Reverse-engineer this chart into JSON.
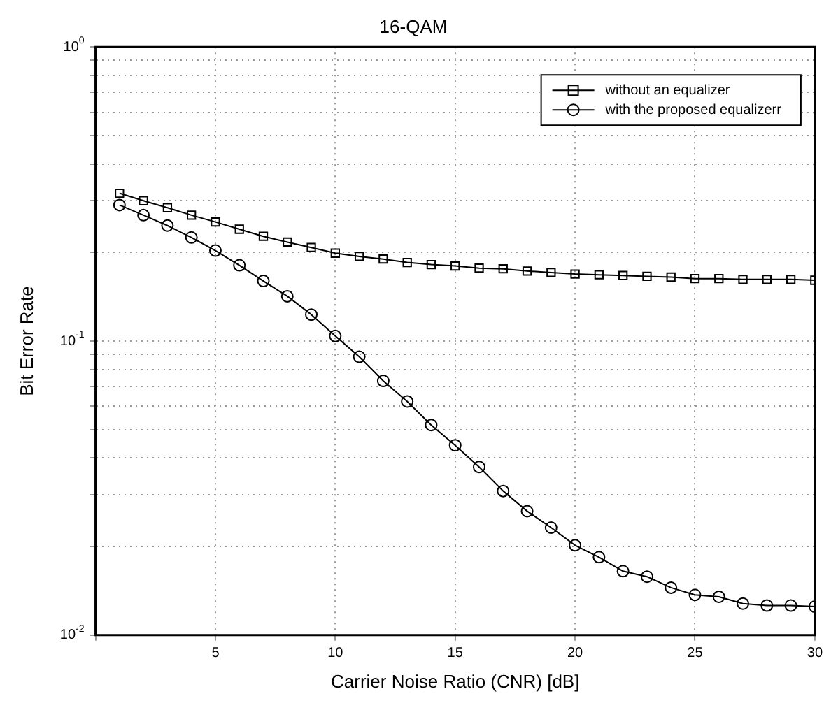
{
  "chart_data": {
    "type": "line",
    "title": "16-QAM",
    "xlabel": "Carrier Noise Ratio (CNR) [dB]",
    "ylabel": "Bit Error Rate",
    "x": [
      1,
      2,
      3,
      4,
      5,
      6,
      7,
      8,
      9,
      10,
      11,
      12,
      13,
      14,
      15,
      16,
      17,
      18,
      19,
      20,
      21,
      22,
      23,
      24,
      25,
      26,
      27,
      28,
      29,
      30
    ],
    "series": [
      {
        "name": "without an equalizer",
        "color": "#000000",
        "marker": "square",
        "values": [
          0.318,
          0.3,
          0.284,
          0.268,
          0.254,
          0.24,
          0.227,
          0.217,
          0.208,
          0.199,
          0.194,
          0.19,
          0.185,
          0.182,
          0.18,
          0.177,
          0.176,
          0.173,
          0.171,
          0.169,
          0.168,
          0.167,
          0.166,
          0.165,
          0.163,
          0.163,
          0.162,
          0.162,
          0.162,
          0.161
        ]
      },
      {
        "name": "with the proposed equalizerr",
        "color": "#000000",
        "marker": "circle",
        "values": [
          0.29,
          0.268,
          0.247,
          0.225,
          0.203,
          0.181,
          0.16,
          0.142,
          0.123,
          0.104,
          0.0884,
          0.0732,
          0.0623,
          0.0518,
          0.0442,
          0.0373,
          0.0309,
          0.0264,
          0.0232,
          0.0202,
          0.0184,
          0.0165,
          0.0158,
          0.0145,
          0.0137,
          0.0135,
          0.0128,
          0.0126,
          0.0126,
          0.0125
        ]
      }
    ],
    "log": "y",
    "xlim": [
      0,
      30
    ],
    "xticks": [
      {
        "value": 0,
        "label": null
      },
      5,
      10,
      15,
      20,
      25,
      30
    ],
    "ylim": [
      0.01,
      1
    ],
    "yticks": [
      {
        "value": 0.01,
        "label": "10$^{-2}$"
      },
      {
        "value": 0.02,
        "label": null
      },
      {
        "value": 0.03,
        "label": null
      },
      {
        "value": 0.04,
        "label": null
      },
      {
        "value": 0.05,
        "label": null
      },
      {
        "value": 0.06,
        "label": null
      },
      {
        "value": 0.07,
        "label": null
      },
      {
        "value": 0.08,
        "label": null
      },
      {
        "value": 0.09,
        "label": null
      },
      {
        "value": 0.1,
        "label": "10$^{-1}$"
      },
      {
        "value": 0.2,
        "label": null
      },
      {
        "value": 0.3,
        "label": null
      },
      {
        "value": 0.4,
        "label": null
      },
      {
        "value": 0.5,
        "label": null
      },
      {
        "value": 0.6,
        "label": null
      },
      {
        "value": 0.7,
        "label": null
      },
      {
        "value": 0.8,
        "label": null
      },
      {
        "value": 0.9,
        "label": null
      },
      {
        "value": 1,
        "label": "10$^{0}$"
      }
    ],
    "grid": true,
    "legend": "top right",
    "line_style": "solid"
  }
}
